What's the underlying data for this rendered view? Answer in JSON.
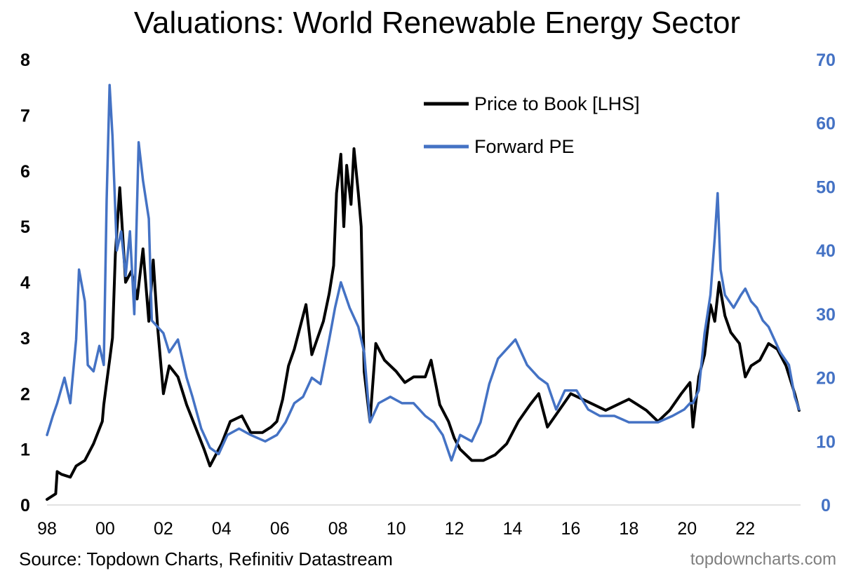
{
  "chart_data": {
    "type": "line",
    "title": "Valuations: World Renewable Energy Sector",
    "x_ticks": [
      "98",
      "00",
      "02",
      "04",
      "06",
      "08",
      "10",
      "12",
      "14",
      "16",
      "18",
      "20",
      "22"
    ],
    "xlim": [
      1998,
      2023.9
    ],
    "y_left": {
      "ticks": [
        "0",
        "1",
        "2",
        "3",
        "4",
        "5",
        "6",
        "7",
        "8"
      ],
      "lim": [
        0,
        8
      ]
    },
    "y_right": {
      "ticks": [
        "0",
        "10",
        "20",
        "30",
        "40",
        "50",
        "60",
        "70"
      ],
      "lim": [
        0,
        70
      ]
    },
    "legend_position": "top-right",
    "series": [
      {
        "name": "Price to Book [LHS]",
        "axis": "left",
        "color": "#000000",
        "x": [
          1998.0,
          1998.3,
          1998.35,
          1998.5,
          1998.8,
          1999.0,
          1999.3,
          1999.6,
          1999.9,
          1999.95,
          2000.05,
          2000.15,
          2000.25,
          2000.35,
          2000.5,
          2000.7,
          2000.9,
          2001.1,
          2001.3,
          2001.5,
          2001.65,
          2001.8,
          2002.0,
          2002.2,
          2002.5,
          2002.8,
          2003.1,
          2003.4,
          2003.6,
          2003.8,
          2004.0,
          2004.3,
          2004.7,
          2005.0,
          2005.4,
          2005.7,
          2005.9,
          2006.1,
          2006.3,
          2006.5,
          2006.7,
          2006.9,
          2007.1,
          2007.3,
          2007.5,
          2007.7,
          2007.85,
          2007.95,
          2008.1,
          2008.2,
          2008.3,
          2008.45,
          2008.55,
          2008.7,
          2008.8,
          2008.9,
          2009.1,
          2009.3,
          2009.6,
          2010.0,
          2010.3,
          2010.6,
          2011.0,
          2011.2,
          2011.5,
          2011.8,
          2012.0,
          2012.2,
          2012.6,
          2013.0,
          2013.4,
          2013.8,
          2014.2,
          2014.6,
          2014.9,
          2015.2,
          2015.6,
          2016.0,
          2016.4,
          2016.8,
          2017.2,
          2017.6,
          2018.0,
          2018.3,
          2018.6,
          2019.0,
          2019.4,
          2019.8,
          2020.1,
          2020.2,
          2020.4,
          2020.6,
          2020.8,
          2020.95,
          2021.1,
          2021.3,
          2021.5,
          2021.8,
          2022.0,
          2022.2,
          2022.5,
          2022.8,
          2023.1,
          2023.4,
          2023.7,
          2023.85
        ],
        "values": [
          0.1,
          0.2,
          0.6,
          0.55,
          0.5,
          0.7,
          0.8,
          1.1,
          1.5,
          1.8,
          2.2,
          2.6,
          3.0,
          4.5,
          5.7,
          4.0,
          4.2,
          3.7,
          4.6,
          3.3,
          4.4,
          3.2,
          2.0,
          2.5,
          2.3,
          1.8,
          1.4,
          1.0,
          0.7,
          0.9,
          1.1,
          1.5,
          1.6,
          1.3,
          1.3,
          1.4,
          1.5,
          1.9,
          2.5,
          2.8,
          3.2,
          3.6,
          2.7,
          3.0,
          3.3,
          3.8,
          4.3,
          5.6,
          6.3,
          5.0,
          6.1,
          5.4,
          6.4,
          5.6,
          5.0,
          2.4,
          1.5,
          2.9,
          2.6,
          2.4,
          2.2,
          2.3,
          2.3,
          2.6,
          1.8,
          1.5,
          1.2,
          1.0,
          0.8,
          0.8,
          0.9,
          1.1,
          1.5,
          1.8,
          2.0,
          1.4,
          1.7,
          2.0,
          1.9,
          1.8,
          1.7,
          1.8,
          1.9,
          1.8,
          1.7,
          1.5,
          1.7,
          2.0,
          2.2,
          1.4,
          2.3,
          2.7,
          3.6,
          3.3,
          4.0,
          3.4,
          3.1,
          2.9,
          2.3,
          2.5,
          2.6,
          2.9,
          2.8,
          2.5,
          2.0,
          1.7
        ]
      },
      {
        "name": "Forward PE",
        "axis": "right",
        "color": "#4472C4",
        "x": [
          1998.0,
          1998.2,
          1998.35,
          1998.6,
          1998.8,
          1999.0,
          1999.1,
          1999.3,
          1999.4,
          1999.6,
          1999.8,
          1999.95,
          2000.05,
          2000.15,
          2000.25,
          2000.4,
          2000.55,
          2000.7,
          2000.85,
          2001.0,
          2001.15,
          2001.3,
          2001.5,
          2001.6,
          2001.8,
          2002.0,
          2002.2,
          2002.5,
          2002.8,
          2003.0,
          2003.3,
          2003.6,
          2003.9,
          2004.2,
          2004.6,
          2005.0,
          2005.5,
          2005.9,
          2006.2,
          2006.5,
          2006.8,
          2007.1,
          2007.4,
          2007.7,
          2007.9,
          2008.1,
          2008.4,
          2008.7,
          2008.9,
          2009.1,
          2009.4,
          2009.8,
          2010.2,
          2010.6,
          2011.0,
          2011.3,
          2011.6,
          2011.9,
          2012.2,
          2012.6,
          2012.9,
          2013.2,
          2013.5,
          2013.7,
          2013.9,
          2014.1,
          2014.5,
          2014.9,
          2015.2,
          2015.5,
          2015.8,
          2016.2,
          2016.6,
          2017.0,
          2017.5,
          2018.0,
          2018.5,
          2019.0,
          2019.5,
          2019.9,
          2020.1,
          2020.2,
          2020.4,
          2020.6,
          2020.8,
          2020.95,
          2021.05,
          2021.15,
          2021.3,
          2021.6,
          2021.85,
          2022.0,
          2022.2,
          2022.4,
          2022.6,
          2022.8,
          2023.0,
          2023.2,
          2023.5,
          2023.7,
          2023.85
        ],
        "values": [
          11,
          14,
          16,
          20,
          16,
          26,
          37,
          32,
          22,
          21,
          25,
          22,
          48,
          66,
          58,
          40,
          43,
          36,
          43,
          30,
          57,
          51,
          45,
          29,
          28,
          27,
          24,
          26,
          20,
          17,
          12,
          9,
          8,
          11,
          12,
          11,
          10,
          11,
          13,
          16,
          17,
          20,
          19,
          26,
          31,
          35,
          31,
          28,
          24,
          13,
          16,
          17,
          16,
          16,
          14,
          13,
          11,
          7,
          11,
          10,
          13,
          19,
          23,
          24,
          25,
          26,
          22,
          20,
          19,
          15,
          18,
          18,
          15,
          14,
          14,
          13,
          13,
          13,
          14,
          15,
          16,
          16,
          18,
          27,
          33,
          42,
          49,
          37,
          33,
          31,
          33,
          34,
          32,
          31,
          29,
          28,
          26,
          24,
          22,
          17,
          15
        ]
      }
    ]
  },
  "source": "Source: Topdown Charts, Refinitiv Datastream",
  "watermark": "topdowncharts.com"
}
